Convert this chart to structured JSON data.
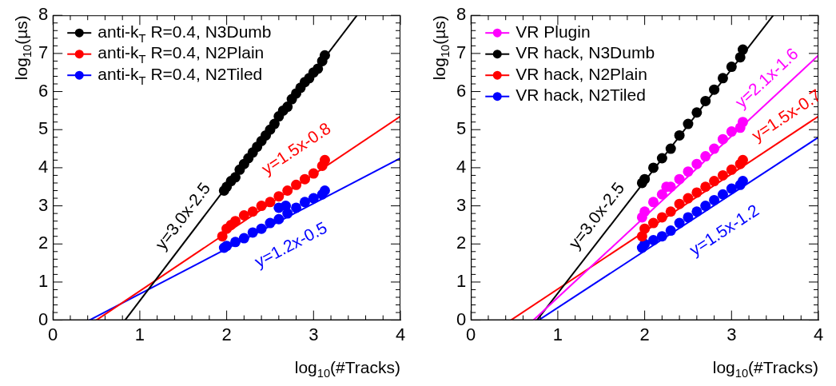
{
  "chart_data": [
    {
      "type": "scatter",
      "xlabel": "log$_{10}$(#Tracks)",
      "ylabel": "log$_{10}$(µs)",
      "xlim": [
        0,
        4
      ],
      "ylim": [
        0,
        8
      ],
      "xticks": [
        0,
        1,
        2,
        3,
        4
      ],
      "yticks": [
        0,
        1,
        2,
        3,
        4,
        5,
        6,
        7,
        8
      ],
      "legend": "top left",
      "grid": false,
      "series": [
        {
          "name": "anti-k$_{T}$ R=0.4, N3Dumb",
          "color": "#000000",
          "marker": "circle",
          "x": [
            1.97,
            2.0,
            2.05,
            2.1,
            2.15,
            2.2,
            2.25,
            2.3,
            2.35,
            2.4,
            2.45,
            2.5,
            2.55,
            2.6,
            2.65,
            2.7,
            2.75,
            2.8,
            2.85,
            2.9,
            2.95,
            3.0,
            3.05,
            3.1,
            3.13
          ],
          "values": [
            3.4,
            3.5,
            3.65,
            3.75,
            3.95,
            4.1,
            4.25,
            4.4,
            4.55,
            4.7,
            4.85,
            5.0,
            5.15,
            5.35,
            5.5,
            5.6,
            5.8,
            5.95,
            6.1,
            6.25,
            6.35,
            6.5,
            6.6,
            6.8,
            6.95
          ]
        },
        {
          "name": "anti-k$_{T}$ R=0.4, N2Plain",
          "color": "#ff0000",
          "marker": "circle",
          "x": [
            1.95,
            2.0,
            2.05,
            2.1,
            2.2,
            2.3,
            2.4,
            2.5,
            2.6,
            2.7,
            2.8,
            2.9,
            3.0,
            3.1,
            3.13
          ],
          "values": [
            2.2,
            2.4,
            2.5,
            2.6,
            2.75,
            2.85,
            3.0,
            3.1,
            3.25,
            3.4,
            3.55,
            3.7,
            3.85,
            4.05,
            4.2
          ]
        },
        {
          "name": "anti-k$_{T}$ R=0.4, N2Tiled",
          "color": "#0000ff",
          "marker": "circle",
          "x": [
            1.97,
            2.0,
            2.1,
            2.2,
            2.3,
            2.4,
            2.5,
            2.6,
            2.6,
            2.68,
            2.7,
            2.8,
            2.9,
            3.0,
            3.1,
            3.13
          ],
          "values": [
            1.9,
            1.95,
            2.05,
            2.15,
            2.3,
            2.4,
            2.55,
            2.65,
            2.95,
            3.0,
            2.8,
            2.95,
            3.1,
            3.2,
            3.3,
            3.4
          ]
        },
        {
          "type": "line",
          "color": "#000000",
          "marker": "none",
          "x": [
            0.83,
            3.5
          ],
          "values": [
            0,
            8
          ]
        },
        {
          "type": "line",
          "color": "#ff0000",
          "marker": "none",
          "x": [
            0.5,
            4
          ],
          "values": [
            0,
            5.35
          ]
        },
        {
          "type": "line",
          "color": "#0000ff",
          "marker": "none",
          "x": [
            0.42,
            4
          ],
          "values": [
            0,
            4.25
          ]
        }
      ],
      "annotations": [
        {
          "text": "y=3.0x-2.5",
          "x": 1.65,
          "y": 2.46
        },
        {
          "text": "y=1.5x-0.8",
          "x": 3.0,
          "y": 3.82
        },
        {
          "text": "y=1.2x-0.5",
          "x": 2.6,
          "y": 2.59
        }
      ]
    },
    {
      "type": "scatter",
      "xlabel": "log$_{10}$(#Tracks)",
      "ylabel": "log$_{10}$(µs)",
      "xlim": [
        0,
        4
      ],
      "ylim": [
        0,
        8
      ],
      "xticks": [
        0,
        1,
        2,
        3,
        4
      ],
      "yticks": [
        0,
        1,
        2,
        3,
        4,
        5,
        6,
        7,
        8
      ],
      "legend": "top left",
      "grid": false,
      "series": [
        {
          "name": "VR Plugin",
          "color": "#ff00ff",
          "marker": "circle",
          "x": [
            1.97,
            2.0,
            2.1,
            2.2,
            2.25,
            2.3,
            2.4,
            2.5,
            2.6,
            2.7,
            2.8,
            2.9,
            3.0,
            3.1,
            3.13
          ],
          "values": [
            2.7,
            2.85,
            3.1,
            3.3,
            3.5,
            3.5,
            3.7,
            3.9,
            4.1,
            4.3,
            4.5,
            4.75,
            4.95,
            5.05,
            5.2
          ]
        },
        {
          "name": "VR hack, N3Dumb",
          "color": "#000000",
          "marker": "circle",
          "x": [
            1.97,
            2.0,
            2.1,
            2.2,
            2.3,
            2.4,
            2.5,
            2.6,
            2.7,
            2.8,
            2.9,
            3.0,
            3.1,
            3.13
          ],
          "values": [
            3.6,
            3.7,
            4.0,
            4.25,
            4.5,
            4.85,
            5.15,
            5.45,
            5.75,
            6.05,
            6.35,
            6.65,
            6.9,
            7.1
          ]
        },
        {
          "name": "VR hack, N2Plain",
          "color": "#ff0000",
          "marker": "circle",
          "x": [
            1.97,
            2.0,
            2.1,
            2.2,
            2.3,
            2.4,
            2.5,
            2.6,
            2.7,
            2.8,
            2.9,
            3.0,
            3.1,
            3.13
          ],
          "values": [
            2.2,
            2.4,
            2.55,
            2.7,
            2.85,
            3.05,
            3.2,
            3.35,
            3.5,
            3.65,
            3.8,
            3.95,
            4.1,
            4.2
          ]
        },
        {
          "name": "VR hack, N2Tiled",
          "color": "#0000ff",
          "marker": "circle",
          "x": [
            1.97,
            2.0,
            2.1,
            2.2,
            2.3,
            2.4,
            2.5,
            2.6,
            2.7,
            2.8,
            2.9,
            3.0,
            3.1,
            3.13
          ],
          "values": [
            1.9,
            2.0,
            2.1,
            2.2,
            2.35,
            2.55,
            2.7,
            2.85,
            3.0,
            3.15,
            3.3,
            3.45,
            3.55,
            3.65
          ]
        },
        {
          "type": "line",
          "color": "#ff00ff",
          "marker": "none",
          "x": [
            0.72,
            4
          ],
          "values": [
            0,
            6.95
          ]
        },
        {
          "type": "line",
          "color": "#000000",
          "marker": "none",
          "x": [
            0.76,
            3.48
          ],
          "values": [
            0,
            8
          ]
        },
        {
          "type": "line",
          "color": "#ff0000",
          "marker": "none",
          "x": [
            0.46,
            4
          ],
          "values": [
            0,
            5.35
          ]
        },
        {
          "type": "line",
          "color": "#0000ff",
          "marker": "none",
          "x": [
            0.78,
            4
          ],
          "values": [
            0,
            4.8
          ]
        }
      ],
      "annotations": [
        {
          "text": "y=3.0x-2.5",
          "x": 1.6,
          "y": 2.47
        },
        {
          "text": "y=2.1x-1.6",
          "x": 3.55,
          "y": 6.0
        },
        {
          "text": "y=1.5x-0.7",
          "x": 3.75,
          "y": 4.97
        },
        {
          "text": "y=1.5x-1.2",
          "x": 2.75,
          "y": 2.94
        }
      ]
    }
  ]
}
